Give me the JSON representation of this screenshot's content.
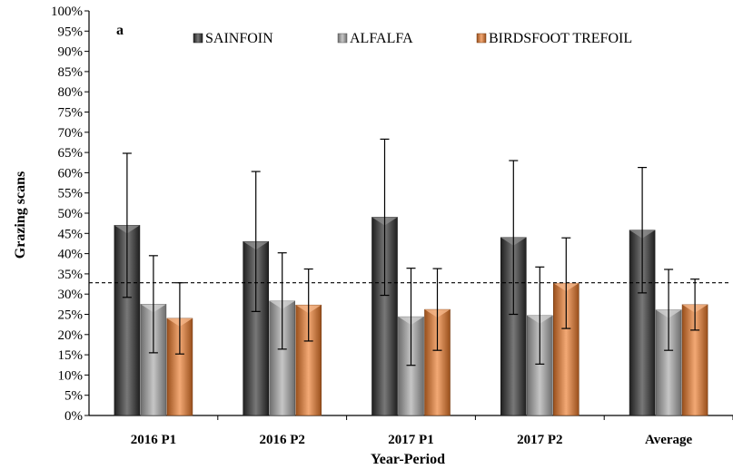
{
  "chart_data": {
    "type": "bar",
    "panel_label": "a",
    "xlabel": "Year-Period",
    "ylabel": "Grazing scans",
    "ylim": [
      0,
      100
    ],
    "ytick_step": 5,
    "ytick_suffix": "%",
    "legend_position": "top",
    "grid": false,
    "reference_line": {
      "value": 32.8,
      "style": "dashed"
    },
    "categories": [
      "2016 P1",
      "2016 P2",
      "2017 P1",
      "2017 P2",
      "Average"
    ],
    "series": [
      {
        "name": "SAINFOIN",
        "color": "#2f2f2f",
        "values": [
          47,
          43,
          49,
          44,
          45.8
        ],
        "error": [
          17.8,
          17.3,
          19.3,
          19,
          15.5
        ]
      },
      {
        "name": "ALFALFA",
        "color": "#a8a8a8",
        "values": [
          27.5,
          28.3,
          24.4,
          24.7,
          26.1
        ],
        "error": [
          12,
          11.9,
          12,
          12,
          10
        ]
      },
      {
        "name": "BIRDSFOOT TREFOIL",
        "color": "#ec7a2a",
        "values": [
          24,
          27.3,
          26.2,
          32.7,
          27.4
        ],
        "error": [
          8.8,
          8.9,
          10.1,
          11.2,
          6.3
        ]
      }
    ]
  }
}
